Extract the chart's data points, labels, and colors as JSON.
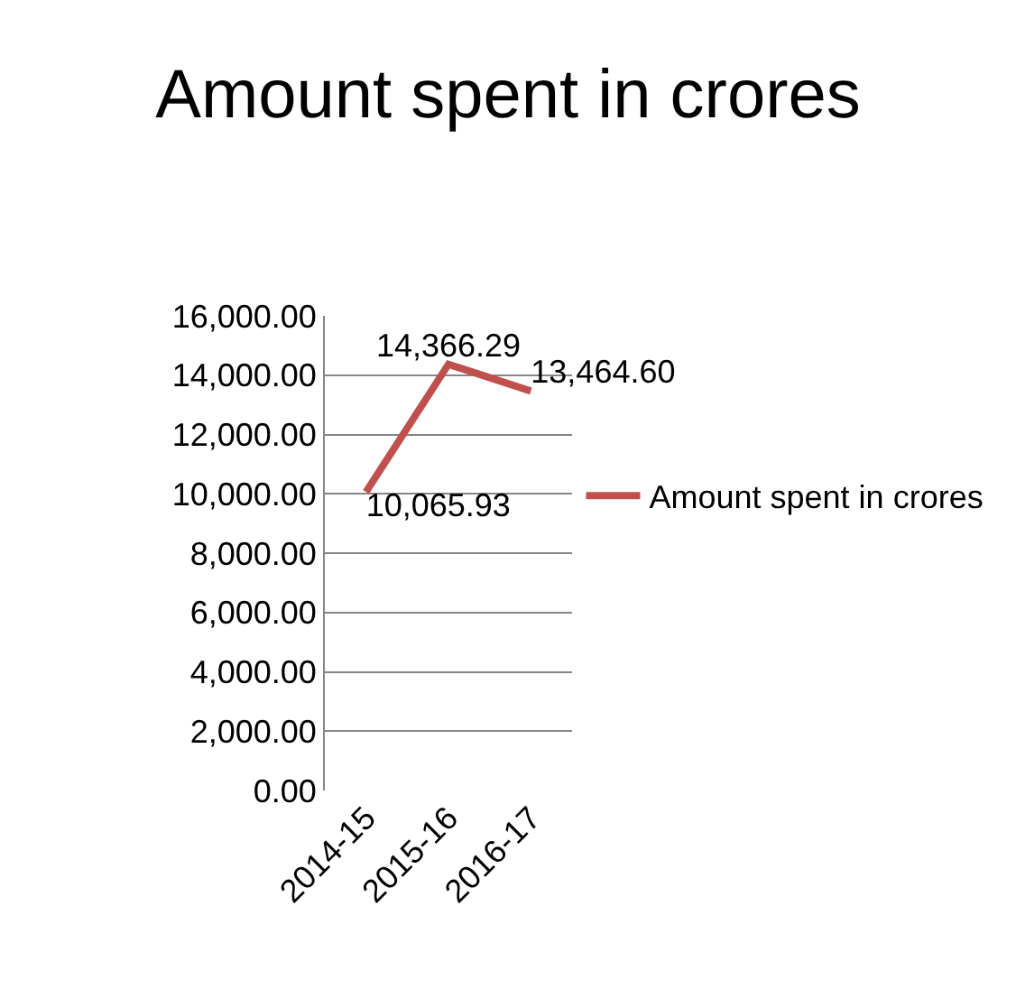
{
  "chart_data": {
    "type": "line",
    "title": "Amount spent in crores",
    "categories": [
      "2014-15",
      "2015-16",
      "2016-17"
    ],
    "series": [
      {
        "name": "Amount spent in crores",
        "color": "#c0504d",
        "values": [
          10065.93,
          14366.29,
          13464.6
        ],
        "value_labels": [
          "10,065.93",
          "14,366.29",
          "13,464.60"
        ]
      }
    ],
    "ylim": [
      0,
      16000
    ],
    "yticks": [
      {
        "value": 0,
        "label": "0.00"
      },
      {
        "value": 2000,
        "label": "2,000.00"
      },
      {
        "value": 4000,
        "label": "4,000.00"
      },
      {
        "value": 6000,
        "label": "6,000.00"
      },
      {
        "value": 8000,
        "label": "8,000.00"
      },
      {
        "value": 10000,
        "label": "10,000.00"
      },
      {
        "value": 12000,
        "label": "12,000.00"
      },
      {
        "value": 14000,
        "label": "14,000.00"
      },
      {
        "value": 16000,
        "label": "16,000.00"
      }
    ],
    "grid": "y",
    "legend": "right",
    "marker": "none",
    "line_style": "solid"
  }
}
